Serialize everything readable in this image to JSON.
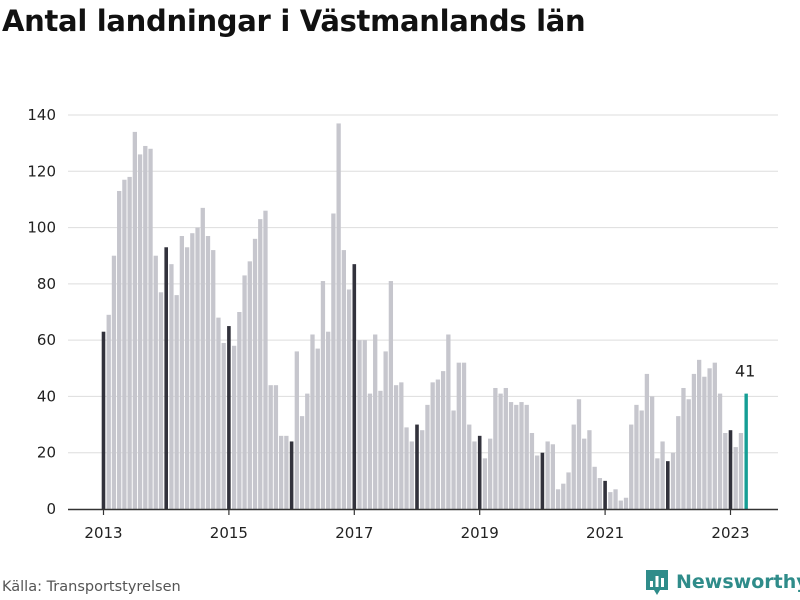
{
  "title": "Antal landningar i Västmanlands län",
  "source": "Källa: Transportstyrelsen",
  "brand": {
    "name": "Newsworthy",
    "icon": "bar-chart-logo-icon",
    "color": "#2f8c8a"
  },
  "colors": {
    "bar": "#c6c6cd",
    "january": "#32323c",
    "latest": "#159e95",
    "grid": "#dddddd"
  },
  "chart_data": {
    "type": "bar",
    "title": "Antal landningar i Västmanlands län",
    "xlabel": "",
    "ylabel": "",
    "ylim": [
      0,
      140
    ],
    "yticks": [
      0,
      20,
      40,
      60,
      80,
      100,
      120,
      140
    ],
    "xticks": [
      "2013",
      "2015",
      "2017",
      "2019",
      "2021",
      "2023"
    ],
    "grid": true,
    "legend": "none",
    "start": "2013-01",
    "frequency": "monthly",
    "highlight": "January bars dark, latest month teal",
    "latest_label": "41",
    "values": [
      63,
      69,
      90,
      113,
      117,
      118,
      134,
      126,
      129,
      128,
      90,
      77,
      93,
      87,
      76,
      97,
      93,
      98,
      100,
      107,
      97,
      92,
      68,
      59,
      65,
      58,
      70,
      83,
      88,
      96,
      103,
      106,
      44,
      44,
      26,
      26,
      24,
      56,
      33,
      41,
      62,
      57,
      81,
      63,
      105,
      137,
      92,
      78,
      87,
      60,
      60,
      41,
      62,
      42,
      56,
      81,
      44,
      45,
      29,
      24,
      30,
      28,
      37,
      45,
      46,
      49,
      62,
      35,
      52,
      52,
      30,
      24,
      26,
      18,
      25,
      43,
      41,
      43,
      38,
      37,
      38,
      37,
      27,
      19,
      20,
      24,
      23,
      7,
      9,
      13,
      30,
      39,
      25,
      28,
      15,
      11,
      10,
      6,
      7,
      3,
      4,
      30,
      37,
      35,
      48,
      40,
      18,
      24,
      17,
      20,
      33,
      43,
      39,
      48,
      53,
      47,
      50,
      52,
      41,
      27,
      28,
      22,
      27,
      41
    ]
  }
}
